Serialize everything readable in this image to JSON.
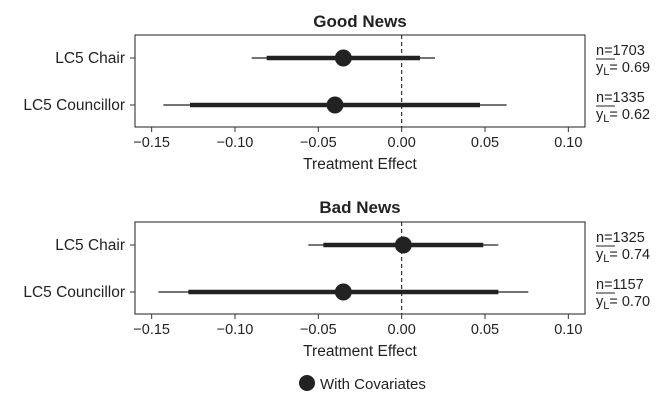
{
  "chart_data": [
    {
      "type": "forest",
      "title": "Good News",
      "xlabel": "Treatment Effect",
      "xlim": [
        -0.16,
        0.11
      ],
      "xticks": [
        "−0.15",
        "−0.10",
        "−0.05",
        "0.00",
        "0.05",
        "0.10"
      ],
      "xtick_values": [
        -0.15,
        -0.1,
        -0.05,
        0.0,
        0.05,
        0.1
      ],
      "reference_line": 0,
      "rows": [
        {
          "label": "LC5 Chair",
          "estimate": -0.035,
          "ci95": [
            -0.09,
            0.02
          ],
          "ci90": [
            -0.081,
            0.011
          ],
          "n": "n=1703",
          "mean": "= 0.69"
        },
        {
          "label": "LC5 Councillor",
          "estimate": -0.04,
          "ci95": [
            -0.143,
            0.063
          ],
          "ci90": [
            -0.127,
            0.047
          ],
          "n": "n=1335",
          "mean": "= 0.62"
        }
      ]
    },
    {
      "type": "forest",
      "title": "Bad News",
      "xlabel": "Treatment Effect",
      "xlim": [
        -0.16,
        0.11
      ],
      "xticks": [
        "−0.15",
        "−0.10",
        "−0.05",
        "0.00",
        "0.05",
        "0.10"
      ],
      "xtick_values": [
        -0.15,
        -0.1,
        -0.05,
        0.0,
        0.05,
        0.1
      ],
      "reference_line": 0,
      "rows": [
        {
          "label": "LC5 Chair",
          "estimate": 0.001,
          "ci95": [
            -0.056,
            0.058
          ],
          "ci90": [
            -0.047,
            0.049
          ],
          "n": "n=1325",
          "mean": "= 0.74"
        },
        {
          "label": "LC5 Councillor",
          "estimate": -0.035,
          "ci95": [
            -0.146,
            0.076
          ],
          "ci90": [
            -0.128,
            0.058
          ],
          "n": "n=1157",
          "mean": "= 0.70"
        }
      ]
    }
  ],
  "mean_symbol": "y",
  "mean_subscript": "L",
  "legend": {
    "label": "With Covariates",
    "marker_color": "#222222"
  },
  "colors": {
    "ink": "#222222",
    "axis": "#333333"
  }
}
